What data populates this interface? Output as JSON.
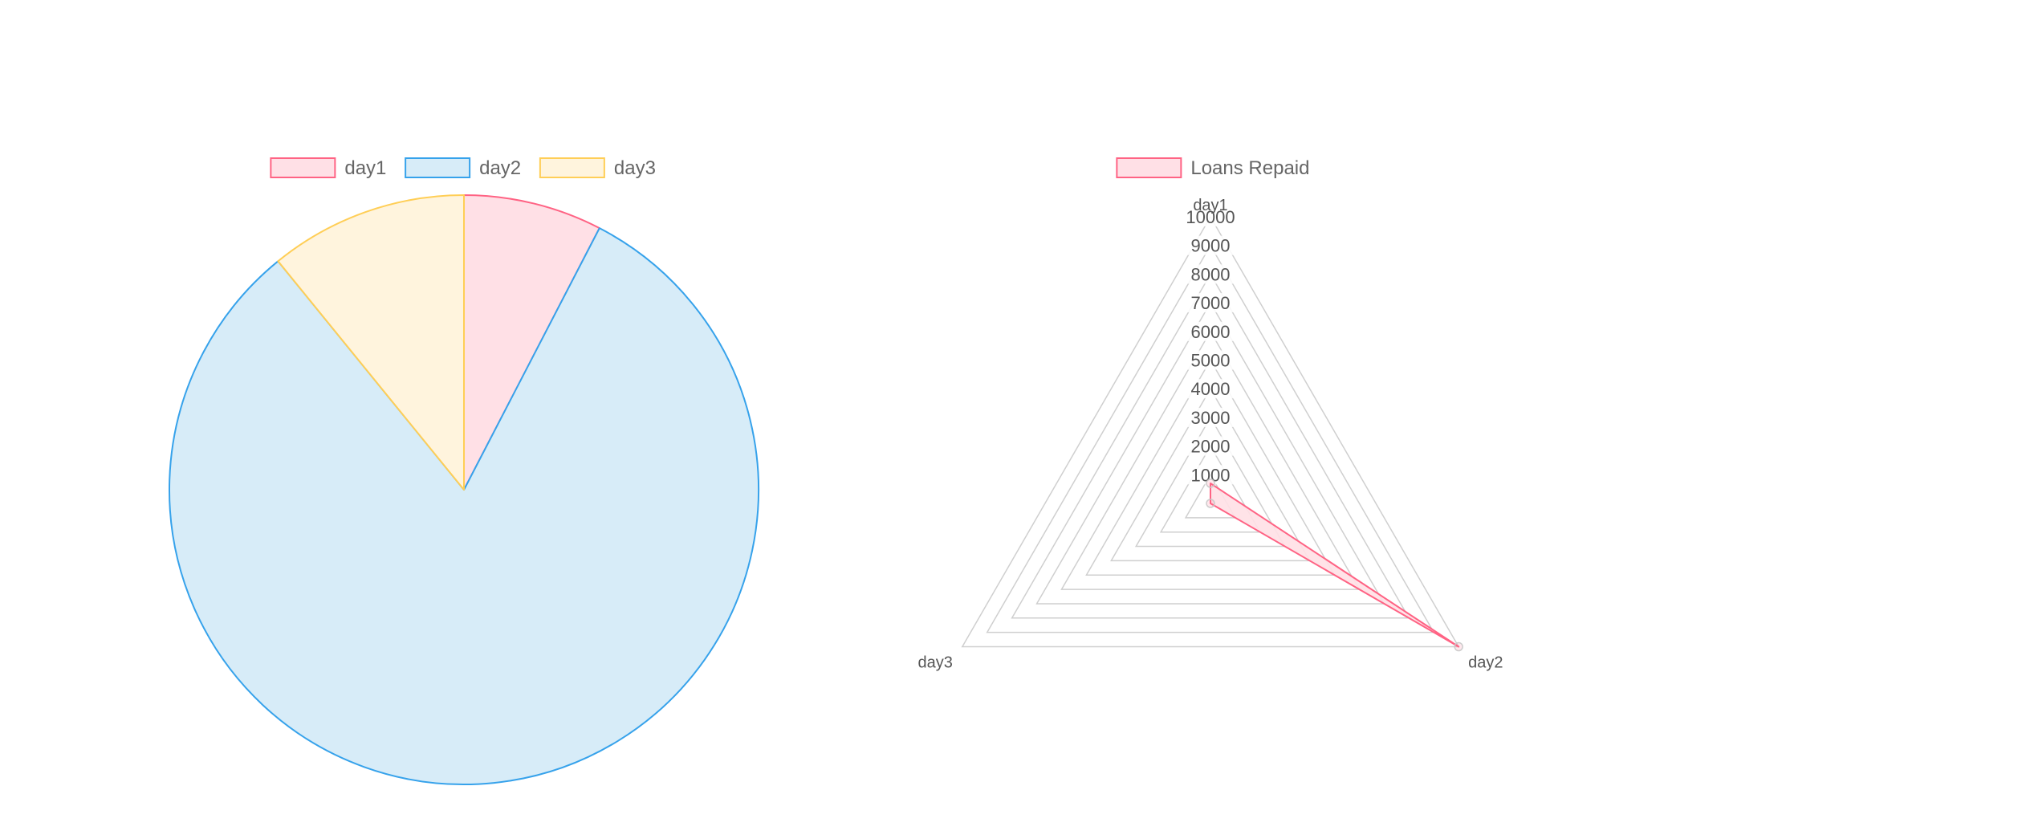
{
  "chart_data": [
    {
      "type": "pie",
      "categories": [
        "day1",
        "day2",
        "day3"
      ],
      "values": [
        700,
        7500,
        1000
      ],
      "legend": {
        "position": "top"
      },
      "colors": {
        "fill": [
          "#FFE0E6",
          "#D7ECF8",
          "#FFF4DD"
        ],
        "stroke": [
          "#FF6384",
          "#36A2EB",
          "#FFCE56"
        ]
      }
    },
    {
      "type": "radar",
      "categories": [
        "day1",
        "day2",
        "day3"
      ],
      "series": [
        {
          "name": "Loans Repaid",
          "values": [
            700,
            10000,
            0
          ]
        }
      ],
      "rlim": [
        0,
        10000
      ],
      "r_ticks": [
        "1000",
        "2000",
        "3000",
        "4000",
        "5000",
        "6000",
        "7000",
        "8000",
        "9000",
        "10000"
      ],
      "legend": {
        "position": "top"
      },
      "colors": {
        "fill": "#FFE0E6",
        "stroke": "#FF6384",
        "grid": "#CFCFCF"
      }
    }
  ]
}
